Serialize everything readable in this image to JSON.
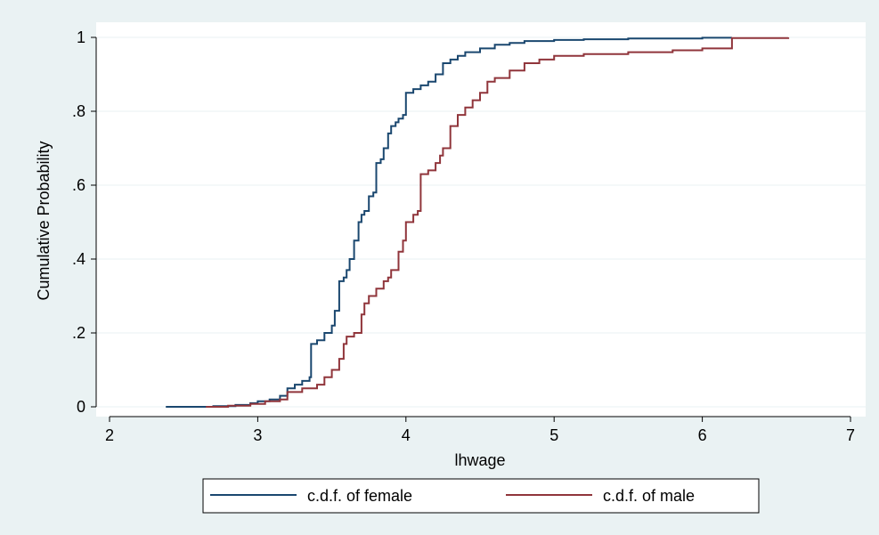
{
  "chart_data": {
    "type": "line",
    "title": "",
    "xlabel": "lhwage",
    "ylabel": "Cumulative Probability",
    "xlim": [
      2,
      7
    ],
    "ylim": [
      0,
      1
    ],
    "xticks": [
      2,
      3,
      4,
      5,
      6,
      7
    ],
    "xtick_labels": [
      "2",
      "3",
      "4",
      "5",
      "6",
      "7"
    ],
    "yticks": [
      0,
      0.2,
      0.4,
      0.6,
      0.8,
      1
    ],
    "ytick_labels": [
      "0",
      ".2",
      ".4",
      ".6",
      ".8",
      "1"
    ],
    "grid": "horizontal",
    "legend_position": "bottom",
    "series": [
      {
        "name": "c.d.f. of female",
        "color": "#1a476f",
        "step": true,
        "x": [
          2.38,
          2.7,
          2.85,
          2.95,
          3.0,
          3.08,
          3.15,
          3.2,
          3.25,
          3.3,
          3.35,
          3.36,
          3.4,
          3.45,
          3.5,
          3.52,
          3.55,
          3.58,
          3.6,
          3.62,
          3.65,
          3.68,
          3.7,
          3.72,
          3.75,
          3.78,
          3.8,
          3.83,
          3.85,
          3.88,
          3.9,
          3.93,
          3.95,
          3.98,
          4.0,
          4.05,
          4.1,
          4.15,
          4.2,
          4.25,
          4.3,
          4.35,
          4.4,
          4.5,
          4.6,
          4.7,
          4.8,
          5.0,
          5.2,
          5.5,
          6.0,
          6.2
        ],
        "y": [
          0.0,
          0.002,
          0.005,
          0.01,
          0.015,
          0.02,
          0.03,
          0.05,
          0.06,
          0.07,
          0.08,
          0.17,
          0.18,
          0.2,
          0.22,
          0.26,
          0.34,
          0.35,
          0.37,
          0.4,
          0.45,
          0.5,
          0.52,
          0.53,
          0.57,
          0.58,
          0.66,
          0.67,
          0.7,
          0.74,
          0.76,
          0.77,
          0.78,
          0.79,
          0.85,
          0.86,
          0.87,
          0.88,
          0.9,
          0.93,
          0.94,
          0.95,
          0.96,
          0.97,
          0.98,
          0.985,
          0.99,
          0.993,
          0.995,
          0.997,
          0.999,
          1.0
        ]
      },
      {
        "name": "c.d.f. of male",
        "color": "#90353b",
        "step": true,
        "x": [
          2.65,
          2.8,
          2.95,
          3.05,
          3.15,
          3.2,
          3.3,
          3.4,
          3.45,
          3.5,
          3.55,
          3.58,
          3.6,
          3.65,
          3.7,
          3.72,
          3.75,
          3.8,
          3.85,
          3.88,
          3.9,
          3.95,
          3.98,
          4.0,
          4.05,
          4.08,
          4.1,
          4.15,
          4.2,
          4.23,
          4.25,
          4.3,
          4.35,
          4.4,
          4.45,
          4.5,
          4.55,
          4.6,
          4.7,
          4.8,
          4.9,
          5.0,
          5.2,
          5.5,
          5.8,
          6.0,
          6.2,
          6.58
        ],
        "y": [
          0.0,
          0.003,
          0.008,
          0.015,
          0.02,
          0.04,
          0.05,
          0.06,
          0.08,
          0.1,
          0.13,
          0.17,
          0.19,
          0.2,
          0.25,
          0.28,
          0.3,
          0.32,
          0.34,
          0.35,
          0.37,
          0.42,
          0.45,
          0.5,
          0.52,
          0.53,
          0.63,
          0.64,
          0.66,
          0.68,
          0.7,
          0.76,
          0.79,
          0.81,
          0.83,
          0.85,
          0.88,
          0.89,
          0.91,
          0.93,
          0.94,
          0.95,
          0.955,
          0.96,
          0.965,
          0.97,
          0.998,
          1.0
        ]
      }
    ]
  }
}
